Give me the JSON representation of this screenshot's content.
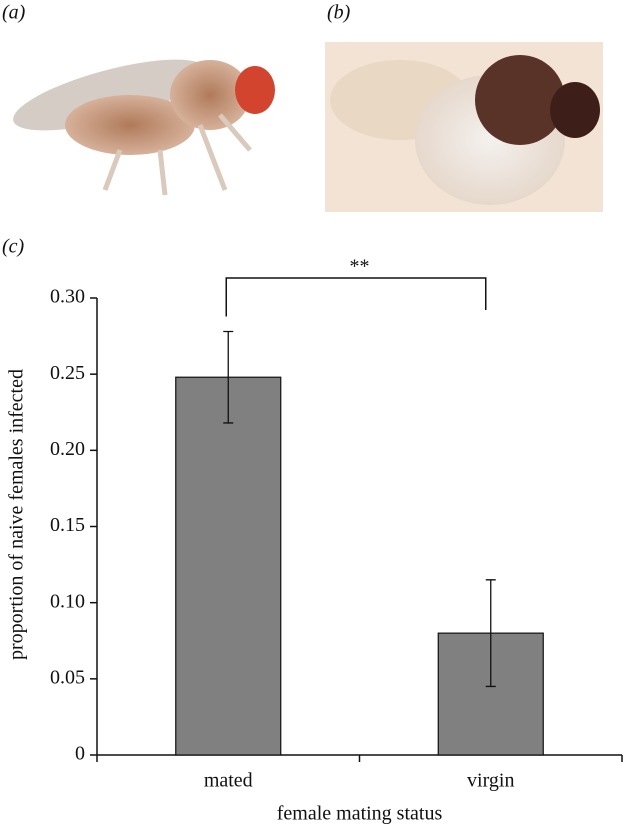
{
  "panel_labels": [
    "(a)",
    "(b)",
    "(c)"
  ],
  "chart_data": {
    "type": "bar",
    "categories": [
      "mated",
      "virgin"
    ],
    "values": [
      0.248,
      0.08
    ],
    "errors": [
      0.03,
      0.035
    ],
    "color": "#808080",
    "xlabel": "female mating status",
    "ylabel": "proportion of naive females infected",
    "ylim": [
      0,
      0.3
    ],
    "yticks": [
      0,
      0.05,
      {
        "value": 0.1,
        "label": "0.10"
      },
      0.15,
      {
        "value": 0.2,
        "label": "0.20"
      },
      0.25,
      {
        "value": 0.3,
        "label": "0.30"
      }
    ],
    "annotation": "**"
  }
}
